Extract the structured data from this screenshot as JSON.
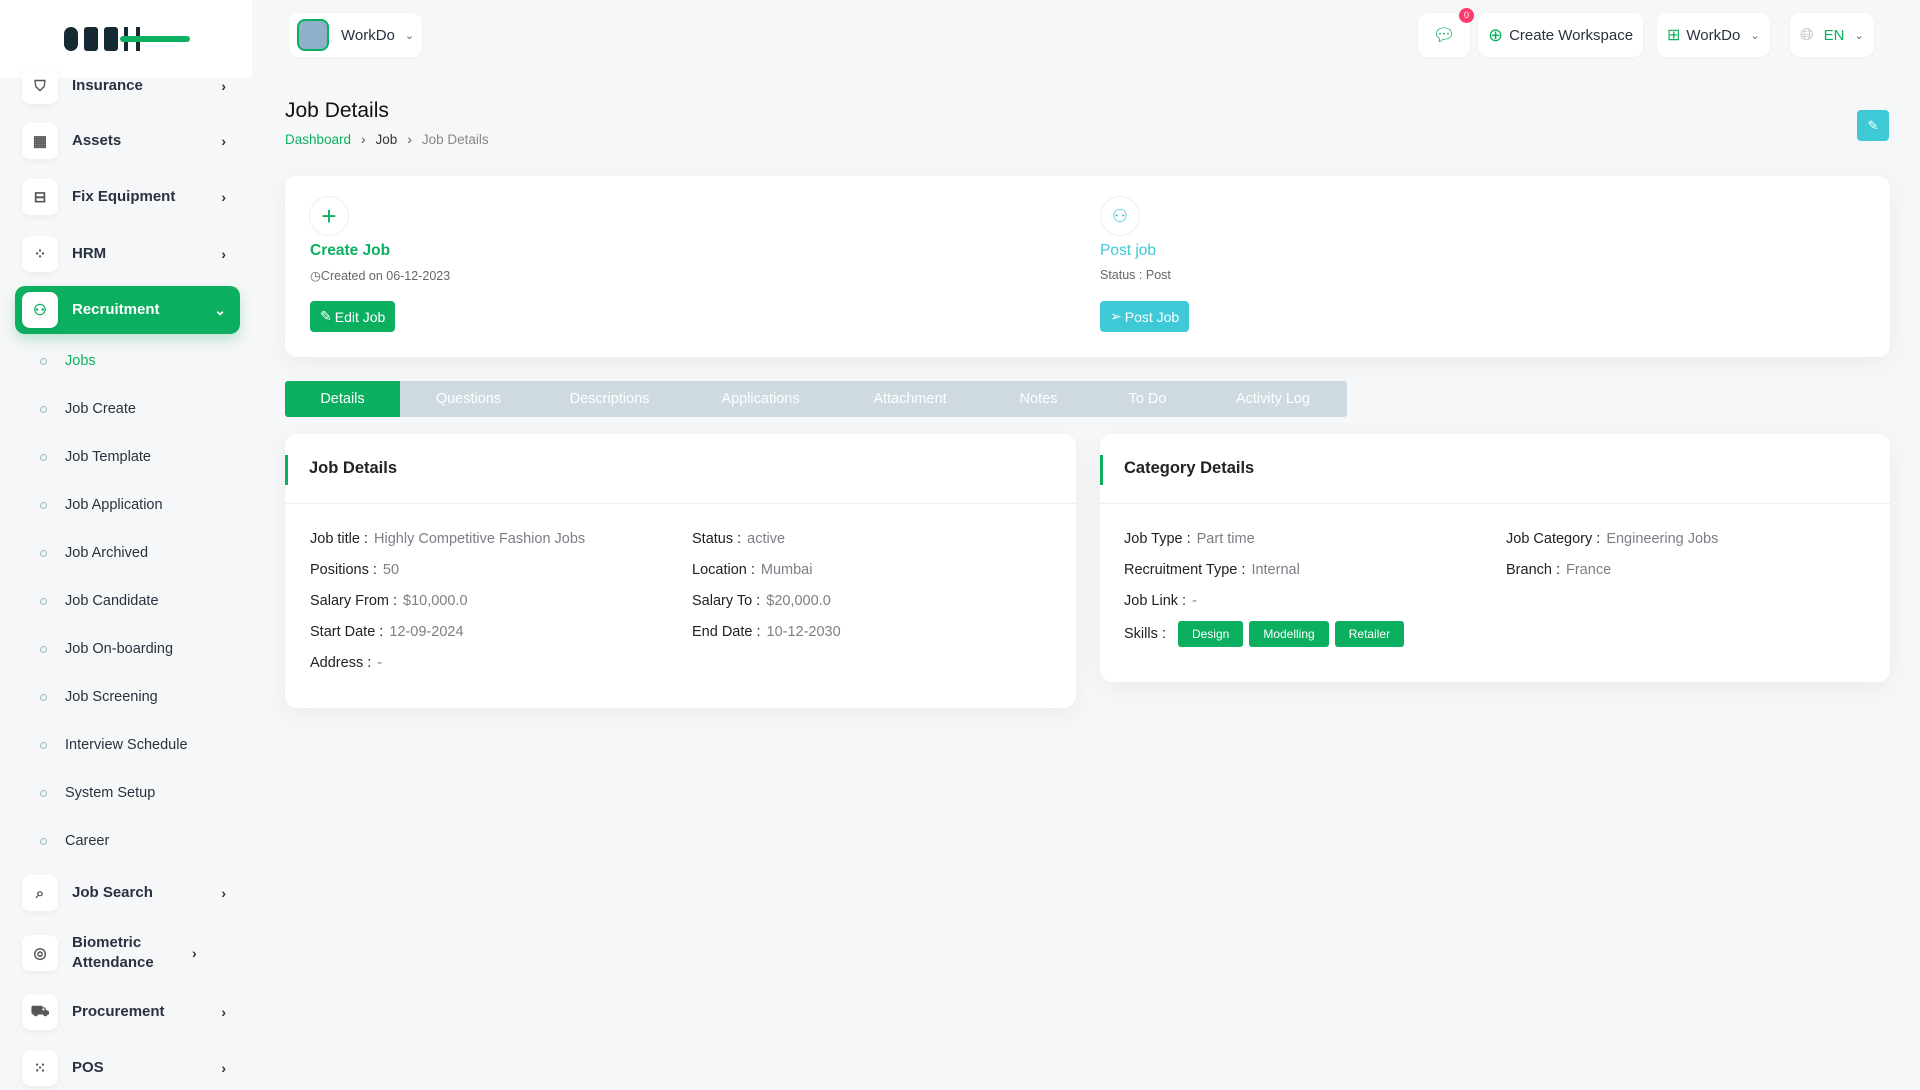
{
  "brand": {
    "logo": "DASH",
    "accent": "#0caf60",
    "info": "#3ec9d6"
  },
  "sidebar": {
    "items": [
      {
        "label": "Insurance",
        "icon": "shield-check-icon"
      },
      {
        "label": "Assets",
        "icon": "calculator-icon"
      },
      {
        "label": "Fix Equipment",
        "icon": "archive-icon"
      },
      {
        "label": "HRM",
        "icon": "hrm-icon"
      },
      {
        "label": "Recruitment",
        "icon": "user-plus-icon"
      },
      {
        "label": "Job Search",
        "icon": "file-search-icon"
      },
      {
        "label": "Biometric Attendance",
        "icon": "fingerprint-icon"
      },
      {
        "label": "Procurement",
        "icon": "cart-icon"
      },
      {
        "label": "POS",
        "icon": "grid-icon"
      }
    ],
    "subitems": [
      "Jobs",
      "Job Create",
      "Job Template",
      "Job Application",
      "Job Archived",
      "Job Candidate",
      "Job On-boarding",
      "Job Screening",
      "Interview Schedule",
      "System Setup",
      "Career"
    ]
  },
  "header": {
    "workspace": "WorkDo",
    "notif_count": "0",
    "create_workspace": "Create Workspace",
    "workspace2": "WorkDo",
    "lang": "EN"
  },
  "page": {
    "title": "Job Details",
    "breadcrumb": [
      "Dashboard",
      "Job",
      "Job Details"
    ]
  },
  "summary": {
    "create_title": "Create Job",
    "created": "Created on 06-12-2023",
    "edit_btn": "Edit Job",
    "post_title": "Post job",
    "status": "Status : Post",
    "post_btn": "Post Job"
  },
  "tabs": [
    "Details",
    "Questions",
    "Descriptions",
    "Applications",
    "Attachment",
    "Notes",
    "To Do",
    "Activity Log"
  ],
  "job_details": {
    "title": "Job Details",
    "fields": [
      {
        "k": "Job title :",
        "v": "Highly Competitive Fashion Jobs"
      },
      {
        "k": "Status :",
        "v": "active"
      },
      {
        "k": "Positions :",
        "v": "50"
      },
      {
        "k": "Location :",
        "v": "Mumbai"
      },
      {
        "k": "Salary From :",
        "v": "$10,000.0"
      },
      {
        "k": "Salary To :",
        "v": "$20,000.0"
      },
      {
        "k": "Start Date :",
        "v": "12-09-2024"
      },
      {
        "k": "End Date :",
        "v": "10-12-2030"
      },
      {
        "k": "Address :",
        "v": "-"
      }
    ]
  },
  "category_details": {
    "title": "Category Details",
    "fields": [
      {
        "k": "Job Type :",
        "v": "Part time"
      },
      {
        "k": "Job Category :",
        "v": "Engineering Jobs"
      },
      {
        "k": "Recruitment Type :",
        "v": "Internal"
      },
      {
        "k": "Branch :",
        "v": "France"
      },
      {
        "k": "Job Link :",
        "v": "-"
      }
    ],
    "skills_label": "Skills :",
    "skills": [
      "Design",
      "Modelling",
      "Retailer"
    ]
  }
}
